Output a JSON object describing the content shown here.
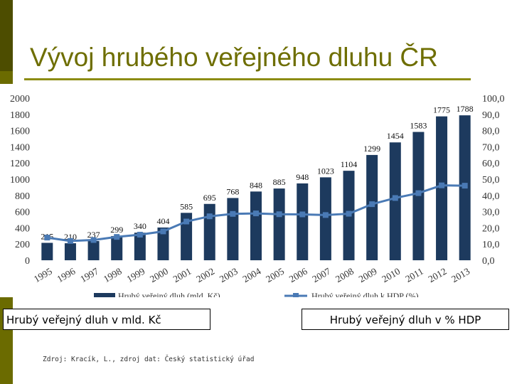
{
  "title": "Vývoj hrubého veřejného dluhu ČR",
  "caption_left": "Hrubý veřejný dluh v mld. Kč",
  "caption_right": "Hrubý veřejný dluh v % HDP",
  "source": "Zdroj: Kracík, L., zdroj dat: Český statistický úřad",
  "colors": {
    "bar": "#1d3a5e",
    "line": "#4a7ab5",
    "title": "#6e6e00",
    "side_bar": "#6b6b00"
  },
  "chart_data": {
    "type": "bar",
    "categories": [
      "1995",
      "1996",
      "1997",
      "1998",
      "1999",
      "2000",
      "2001",
      "2002",
      "2003",
      "2004",
      "2005",
      "2006",
      "2007",
      "2008",
      "2009",
      "2010",
      "2011",
      "2012",
      "2013"
    ],
    "series": [
      {
        "name": "Hrubý veřejný dluh (mld. Kč)",
        "type": "bar",
        "axis": "left",
        "values": [
          215,
          210,
          237,
          299,
          340,
          404,
          585,
          695,
          768,
          848,
          885,
          948,
          1023,
          1104,
          1299,
          1454,
          1583,
          1775,
          1788
        ]
      },
      {
        "name": "Hrubý veřejný dluh k HDP (%)",
        "type": "line",
        "axis": "right",
        "values": [
          14.0,
          11.9,
          12.5,
          14.4,
          15.8,
          17.8,
          23.9,
          27.1,
          28.6,
          28.9,
          28.4,
          28.3,
          27.9,
          28.7,
          34.6,
          38.4,
          41.4,
          46.2,
          46.0
        ]
      }
    ],
    "left_axis": {
      "ylim": [
        0,
        2000
      ],
      "ticks": [
        "0",
        "200",
        "400",
        "600",
        "800",
        "1000",
        "1200",
        "1400",
        "1600",
        "1800",
        "2000"
      ]
    },
    "right_axis": {
      "ylim": [
        0,
        100
      ],
      "ticks": [
        "0,0",
        "10,0",
        "20,0",
        "30,0",
        "40,0",
        "50,0",
        "60,0",
        "70,0",
        "80,0",
        "90,0",
        "100,0"
      ]
    },
    "data_labels": [
      "215",
      "210",
      "237",
      "299",
      "340",
      "404",
      "585",
      "695",
      "768",
      "848",
      "885",
      "948",
      "1023",
      "1104",
      "1299",
      "1454",
      "1583",
      "1775",
      "1788"
    ],
    "legend": [
      "Hrubý veřejný dluh (mld. Kč)",
      "Hrubý veřejný dluh k HDP (%)"
    ],
    "legend_position": "bottom"
  }
}
